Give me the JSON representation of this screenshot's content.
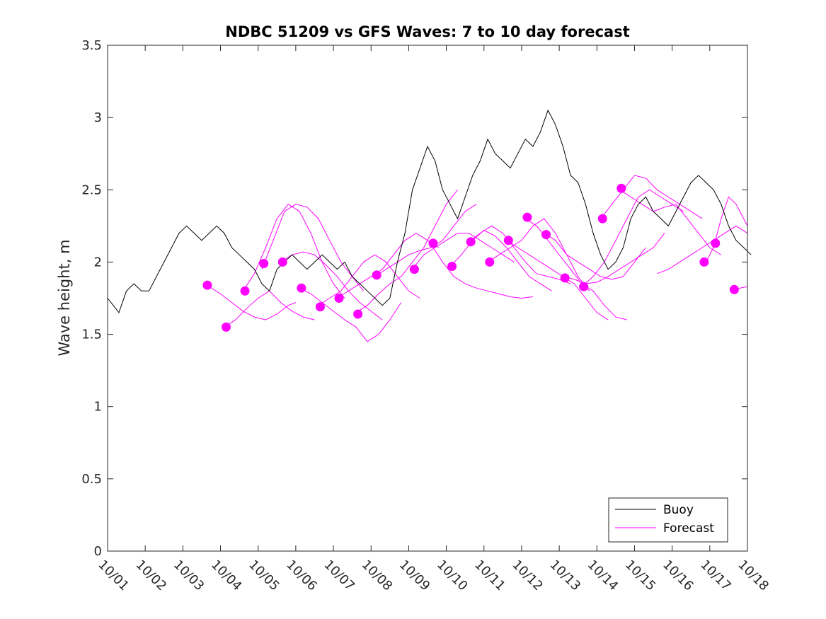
{
  "chart_data": {
    "type": "line",
    "title": "NDBC 51209 vs GFS Waves: 7 to 10 day forecast",
    "xlabel": "",
    "ylabel": "Wave height, m",
    "xlim": [
      0,
      17
    ],
    "ylim": [
      0,
      3.5
    ],
    "x_tick_labels": [
      "10/01",
      "10/02",
      "10/03",
      "10/04",
      "10/05",
      "10/06",
      "10/07",
      "10/08",
      "10/09",
      "10/10",
      "10/11",
      "10/12",
      "10/13",
      "10/14",
      "10/15",
      "10/16",
      "10/17",
      "10/18"
    ],
    "y_ticks": [
      0,
      0.5,
      1,
      1.5,
      2,
      2.5,
      3,
      3.5
    ],
    "y_tick_labels": [
      "0",
      "0.5",
      "1",
      "1.5",
      "2",
      "2.5",
      "3",
      "3.5"
    ],
    "legend": {
      "position": "bottom-right",
      "entries": [
        "Buoy",
        "Forecast"
      ]
    },
    "colors": {
      "buoy": "#000000",
      "forecast": "#ff00ff"
    },
    "series": [
      {
        "name": "Buoy",
        "x": [
          0,
          0.15,
          0.3,
          0.5,
          0.7,
          0.9,
          1.1,
          1.3,
          1.5,
          1.7,
          1.9,
          2.1,
          2.3,
          2.5,
          2.7,
          2.9,
          3.1,
          3.3,
          3.5,
          3.7,
          3.9,
          4.1,
          4.3,
          4.5,
          4.7,
          4.9,
          5.1,
          5.3,
          5.5,
          5.7,
          5.9,
          6.1,
          6.3,
          6.5,
          6.7,
          6.9,
          7.1,
          7.3,
          7.5,
          7.7,
          7.9,
          8.1,
          8.3,
          8.5,
          8.7,
          8.9,
          9.1,
          9.3,
          9.5,
          9.7,
          9.9,
          10.1,
          10.3,
          10.5,
          10.7,
          10.9,
          11.1,
          11.3,
          11.5,
          11.7,
          11.9,
          12.1,
          12.3,
          12.5,
          12.7,
          12.9,
          13.1,
          13.3,
          13.5,
          13.7,
          13.9,
          14.1,
          14.3,
          14.5,
          14.7,
          14.9,
          15.1,
          15.3,
          15.5,
          15.7,
          15.9,
          16.1,
          16.3,
          16.5,
          16.7,
          16.9,
          17.1
        ],
        "values": [
          1.75,
          1.7,
          1.65,
          1.8,
          1.85,
          1.8,
          1.8,
          1.9,
          2.0,
          2.1,
          2.2,
          2.25,
          2.2,
          2.15,
          2.2,
          2.25,
          2.2,
          2.1,
          2.05,
          2.0,
          1.95,
          1.85,
          1.8,
          1.95,
          2.0,
          2.05,
          2.0,
          1.95,
          2.0,
          2.05,
          2.0,
          1.95,
          2.0,
          1.9,
          1.85,
          1.8,
          1.75,
          1.7,
          1.75,
          2.0,
          2.2,
          2.5,
          2.65,
          2.8,
          2.7,
          2.5,
          2.4,
          2.3,
          2.45,
          2.6,
          2.7,
          2.85,
          2.75,
          2.7,
          2.65,
          2.75,
          2.85,
          2.8,
          2.9,
          3.05,
          2.95,
          2.8,
          2.6,
          2.55,
          2.4,
          2.2,
          2.05,
          1.95,
          2.0,
          2.1,
          2.3,
          2.4,
          2.45,
          2.35,
          2.3,
          2.25,
          2.35,
          2.45,
          2.55,
          2.6,
          2.55,
          2.5,
          2.4,
          2.25,
          2.15,
          2.1,
          2.05
        ]
      },
      {
        "name": "Forecast",
        "lines": [
          {
            "x": [
              2.7,
              3.0,
              3.3,
              3.6,
              3.9,
              4.2,
              4.5,
              4.8,
              5.0
            ],
            "values": [
              1.83,
              1.78,
              1.72,
              1.66,
              1.62,
              1.6,
              1.64,
              1.7,
              1.72
            ]
          },
          {
            "x": [
              3.1,
              3.4,
              3.7,
              4.0,
              4.3,
              4.6,
              4.9,
              5.2,
              5.5
            ],
            "values": [
              1.55,
              1.6,
              1.68,
              1.75,
              1.8,
              1.72,
              1.66,
              1.62,
              1.6
            ]
          },
          {
            "x": [
              3.6,
              3.9,
              4.2,
              4.5,
              4.8,
              5.1,
              5.4,
              5.7,
              6.0,
              6.3
            ],
            "values": [
              1.8,
              1.92,
              2.1,
              2.3,
              2.4,
              2.35,
              2.2,
              2.0,
              1.85,
              1.75
            ]
          },
          {
            "x": [
              4.1,
              4.4,
              4.7,
              5.0,
              5.3,
              5.6,
              5.9,
              6.2,
              6.5,
              6.8
            ],
            "values": [
              1.95,
              2.15,
              2.35,
              2.4,
              2.38,
              2.3,
              2.15,
              2.0,
              1.9,
              1.8
            ]
          },
          {
            "x": [
              4.6,
              4.9,
              5.2,
              5.5,
              5.8,
              6.1,
              6.4,
              6.7,
              7.0,
              7.3
            ],
            "values": [
              2.0,
              2.05,
              2.07,
              2.05,
              1.98,
              1.9,
              1.8,
              1.72,
              1.66,
              1.6
            ]
          },
          {
            "x": [
              5.1,
              5.4,
              5.7,
              6.0,
              6.3,
              6.6,
              6.9,
              7.2,
              7.5,
              7.8
            ],
            "values": [
              1.82,
              1.78,
              1.72,
              1.66,
              1.6,
              1.55,
              1.45,
              1.5,
              1.6,
              1.72
            ]
          },
          {
            "x": [
              5.6,
              5.9,
              6.2,
              6.5,
              6.8,
              7.1,
              7.4,
              7.7,
              8.0,
              8.3
            ],
            "values": [
              1.7,
              1.75,
              1.8,
              1.9,
              2.0,
              2.05,
              2.0,
              1.9,
              1.8,
              1.75
            ]
          },
          {
            "x": [
              6.1,
              6.4,
              6.7,
              7.0,
              7.3,
              7.6,
              7.9,
              8.2,
              8.5,
              8.8
            ],
            "values": [
              1.75,
              1.8,
              1.85,
              1.9,
              1.95,
              2.05,
              2.15,
              2.2,
              2.15,
              2.1
            ]
          },
          {
            "x": [
              6.6,
              6.9,
              7.2,
              7.5,
              7.8,
              8.1,
              8.4,
              8.7,
              9.0,
              9.3
            ],
            "values": [
              1.65,
              1.7,
              1.78,
              1.85,
              1.9,
              2.0,
              2.1,
              2.25,
              2.4,
              2.5
            ]
          },
          {
            "x": [
              7.1,
              7.4,
              7.7,
              8.0,
              8.3,
              8.6,
              8.9,
              9.2,
              9.5,
              9.8
            ],
            "values": [
              1.9,
              1.95,
              2.0,
              2.05,
              2.08,
              2.1,
              2.15,
              2.25,
              2.35,
              2.4
            ]
          },
          {
            "x": [
              8.1,
              8.4,
              8.7,
              9.0,
              9.3,
              9.6,
              9.9,
              10.2,
              10.5,
              10.8
            ],
            "values": [
              1.95,
              2.05,
              2.1,
              2.15,
              2.2,
              2.2,
              2.15,
              2.1,
              2.05,
              2.0
            ]
          },
          {
            "x": [
              8.6,
              8.9,
              9.2,
              9.5,
              9.8,
              10.1,
              10.4,
              10.7,
              11.0,
              11.3
            ],
            "values": [
              2.12,
              2.0,
              1.9,
              1.85,
              1.82,
              1.8,
              1.78,
              1.76,
              1.75,
              1.76
            ]
          },
          {
            "x": [
              9.1,
              9.4,
              9.7,
              10.0,
              10.3,
              10.6,
              10.9,
              11.2,
              11.5,
              11.8
            ],
            "values": [
              1.97,
              2.05,
              2.15,
              2.22,
              2.18,
              2.1,
              2.0,
              1.9,
              1.85,
              1.8
            ]
          },
          {
            "x": [
              9.6,
              9.9,
              10.2,
              10.5,
              10.8,
              11.1,
              11.4,
              11.7,
              12.0,
              12.3
            ],
            "values": [
              2.14,
              2.2,
              2.25,
              2.2,
              2.1,
              2.0,
              1.92,
              1.9,
              1.88,
              1.85
            ]
          },
          {
            "x": [
              10.1,
              10.4,
              10.7,
              11.0,
              11.3,
              11.6,
              11.9,
              12.2,
              12.5,
              12.8
            ],
            "values": [
              2.0,
              2.05,
              2.1,
              2.15,
              2.25,
              2.3,
              2.2,
              2.05,
              1.9,
              1.8
            ]
          },
          {
            "x": [
              10.6,
              10.9,
              11.2,
              11.5,
              11.8,
              12.1,
              12.4,
              12.7,
              13.0,
              13.3
            ],
            "values": [
              2.15,
              2.1,
              2.05,
              2.0,
              1.95,
              1.9,
              1.85,
              1.75,
              1.65,
              1.6
            ]
          },
          {
            "x": [
              11.1,
              11.4,
              11.7,
              12.0,
              12.3,
              12.6,
              12.9,
              13.2,
              13.5,
              13.8
            ],
            "values": [
              2.3,
              2.25,
              2.15,
              2.05,
              1.95,
              1.85,
              1.8,
              1.7,
              1.62,
              1.6
            ]
          },
          {
            "x": [
              11.6,
              11.9,
              12.2,
              12.5,
              12.8,
              13.1,
              13.4,
              13.7,
              14.0,
              14.3
            ],
            "values": [
              2.2,
              2.15,
              2.05,
              2.0,
              1.95,
              1.9,
              1.88,
              1.9,
              2.0,
              2.1
            ]
          },
          {
            "x": [
              12.1,
              12.4,
              12.7,
              13.0,
              13.3,
              13.6,
              13.9,
              14.2,
              14.5,
              14.8
            ],
            "values": [
              1.9,
              1.88,
              1.85,
              1.86,
              1.9,
              1.95,
              2.0,
              2.05,
              2.1,
              2.2
            ]
          },
          {
            "x": [
              12.6,
              12.9,
              13.2,
              13.5,
              13.8,
              14.1,
              14.4,
              14.7,
              15.0,
              15.3
            ],
            "values": [
              1.83,
              1.9,
              2.0,
              2.15,
              2.3,
              2.45,
              2.5,
              2.45,
              2.4,
              2.35
            ]
          },
          {
            "x": [
              13.1,
              13.4,
              13.7,
              14.0,
              14.3,
              14.6,
              14.9,
              15.2,
              15.5,
              15.8
            ],
            "values": [
              2.3,
              2.4,
              2.5,
              2.6,
              2.58,
              2.5,
              2.45,
              2.4,
              2.35,
              2.3
            ]
          },
          {
            "x": [
              13.6,
              13.9,
              14.2,
              14.5,
              14.8,
              15.1,
              15.4,
              15.7,
              16.0,
              16.3
            ],
            "values": [
              2.5,
              2.45,
              2.4,
              2.35,
              2.38,
              2.4,
              2.3,
              2.2,
              2.1,
              2.05
            ]
          },
          {
            "x": [
              14.6,
              14.9,
              15.2,
              15.5,
              15.8,
              16.1,
              16.4,
              16.7,
              17.0
            ],
            "values": [
              1.92,
              1.95,
              2.0,
              2.05,
              2.1,
              2.15,
              2.2,
              2.25,
              2.2
            ]
          },
          {
            "x": [
              15.9,
              16.1,
              16.3,
              16.5,
              16.7,
              16.9,
              17.0
            ],
            "values": [
              2.0,
              2.1,
              2.3,
              2.45,
              2.4,
              2.3,
              2.25
            ]
          },
          {
            "x": [
              16.6,
              16.8,
              17.0
            ],
            "values": [
              1.8,
              1.82,
              1.83
            ]
          }
        ],
        "markers": {
          "x": [
            2.65,
            3.15,
            3.65,
            4.15,
            4.65,
            5.15,
            5.65,
            6.15,
            6.65,
            7.15,
            8.15,
            8.65,
            9.15,
            9.65,
            10.15,
            10.65,
            11.15,
            11.65,
            12.15,
            12.65,
            13.15,
            13.65,
            15.85,
            16.15,
            16.65
          ],
          "values": [
            1.84,
            1.55,
            1.8,
            1.99,
            2.0,
            1.82,
            1.69,
            1.75,
            1.64,
            1.91,
            1.95,
            2.13,
            1.97,
            2.14,
            2.0,
            2.15,
            2.31,
            2.19,
            1.89,
            1.83,
            2.3,
            2.51,
            2.0,
            2.13,
            1.81
          ]
        }
      }
    ]
  }
}
